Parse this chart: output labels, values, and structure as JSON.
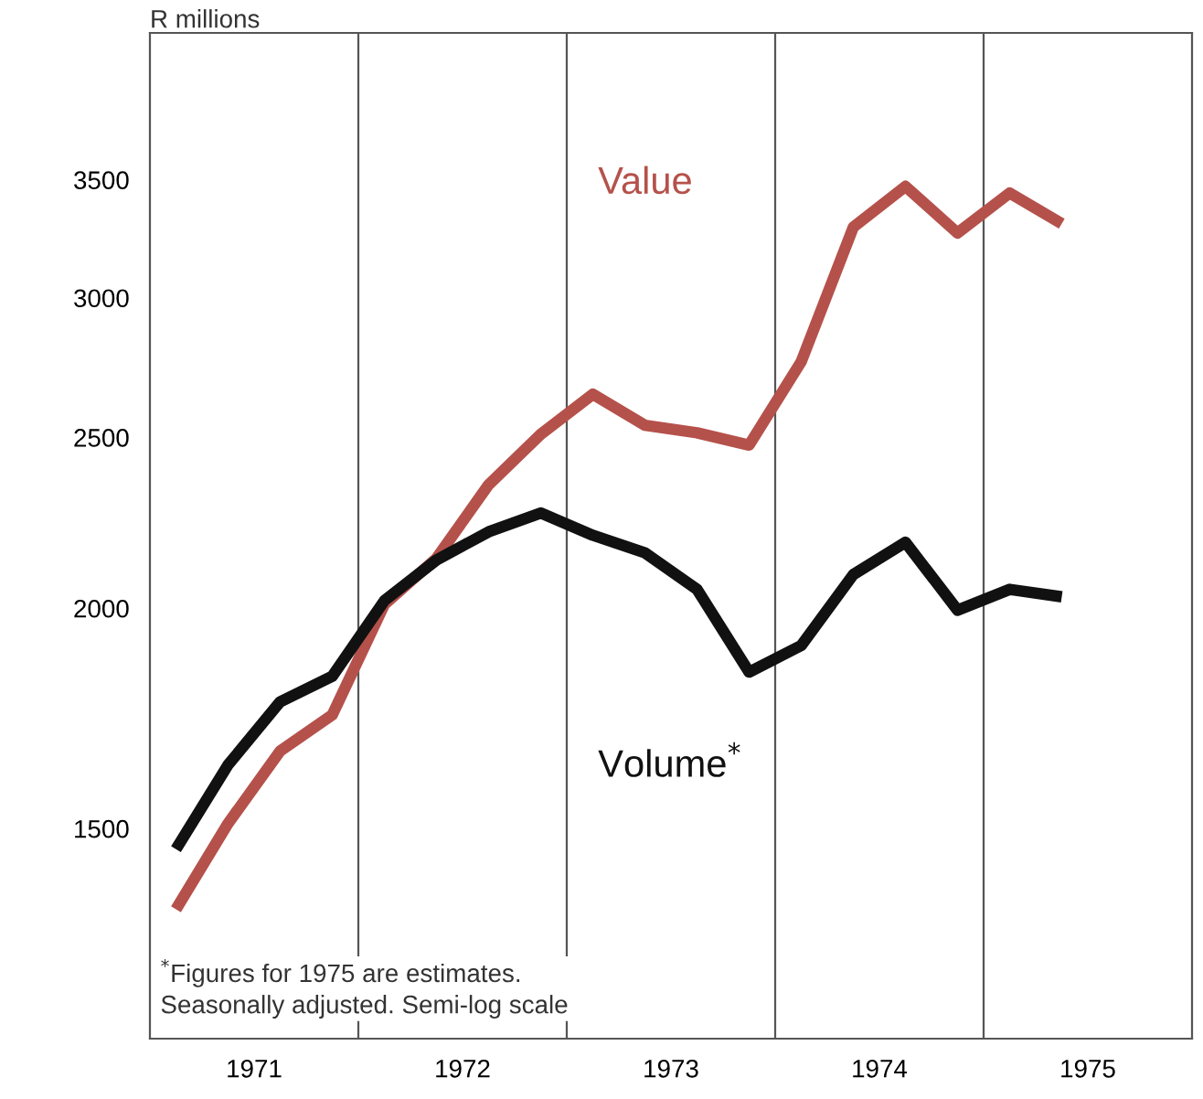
{
  "chart_data": {
    "type": "line",
    "ylabel": "R millions",
    "x": [
      1971.125,
      1971.375,
      1971.625,
      1971.875,
      1972.125,
      1972.375,
      1972.625,
      1972.875,
      1973.125,
      1973.375,
      1973.625,
      1973.875,
      1974.125,
      1974.375,
      1974.625,
      1974.875,
      1975.125,
      1975.375
    ],
    "series": [
      {
        "name": "Value",
        "color": "#b5514b",
        "values": [
          1350,
          1510,
          1660,
          1740,
          2010,
          2135,
          2350,
          2510,
          2645,
          2540,
          2515,
          2475,
          2760,
          3290,
          3470,
          3265,
          3440,
          3305
        ]
      },
      {
        "name": "Volume$^{*}$",
        "color": "#111111",
        "values": [
          1460,
          1630,
          1770,
          1830,
          2020,
          2130,
          2210,
          2265,
          2200,
          2150,
          2050,
          1840,
          1905,
          2090,
          2180,
          1995,
          2050,
          2030
        ]
      }
    ],
    "log": true,
    "xlim": [
      1971,
      1976
    ],
    "ylim": [
      1140,
      4240
    ],
    "xticks": [
      {
        "value": 1971.5,
        "label": "1971"
      },
      {
        "value": 1972.5,
        "label": "1972"
      },
      {
        "value": 1973.5,
        "label": "1973"
      },
      {
        "value": 1974.5,
        "label": "1974"
      },
      {
        "value": 1975.5,
        "label": "1975"
      }
    ],
    "yticks": [
      1500,
      2000,
      2500,
      3000,
      3500
    ],
    "ref_lines": [
      {
        "axis": "x",
        "value": 1972,
        "label": null,
        "color": "#555555"
      },
      {
        "axis": "x",
        "value": 1973,
        "label": null,
        "color": "#555555"
      },
      {
        "axis": "x",
        "value": 1974,
        "label": null,
        "color": "#555555"
      },
      {
        "axis": "x",
        "value": 1975,
        "label": null,
        "color": "#555555"
      }
    ],
    "annotations": [
      "$^{*}$Figures for 1975 are estimates.\nSeasonally adjusted. Semi-log scale"
    ],
    "grid": false,
    "legend": false,
    "marker": "none",
    "line_style": "solid"
  }
}
